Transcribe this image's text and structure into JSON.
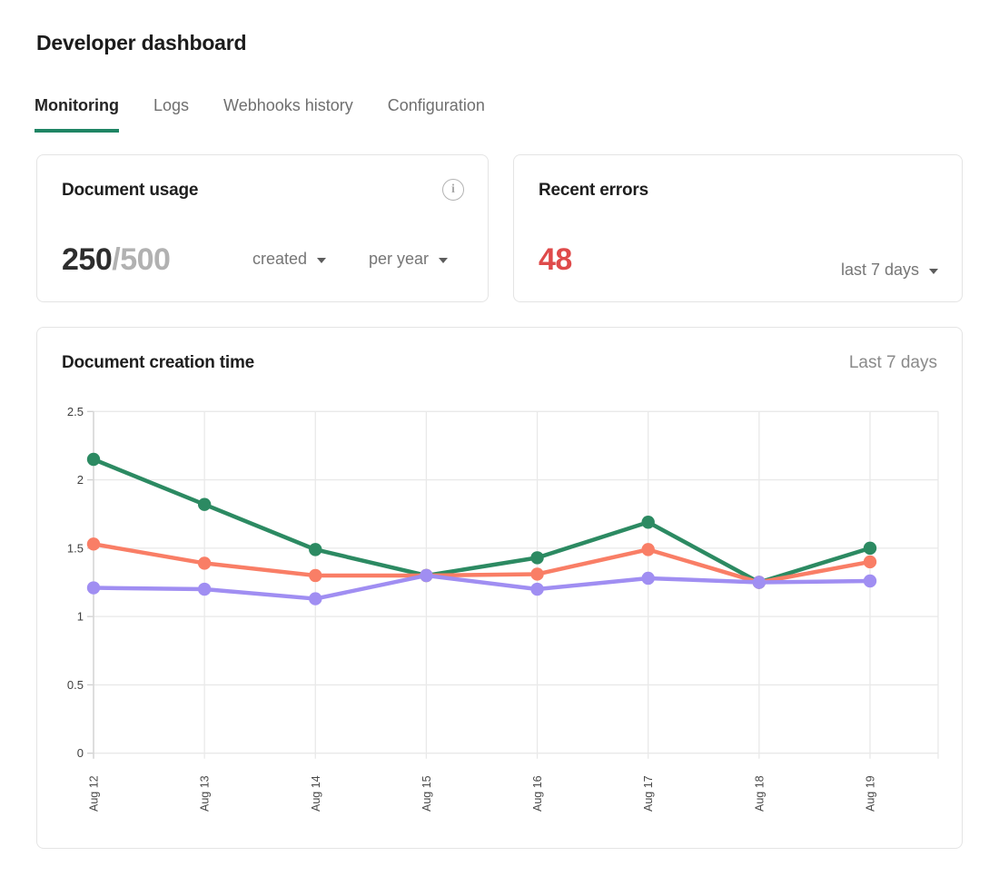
{
  "page": {
    "title": "Developer dashboard"
  },
  "colors": {
    "accent_green": "#1f8564",
    "error_red": "#df4a4a",
    "muted_text": "#767676",
    "card_border": "#e4e4e4"
  },
  "tabs": [
    {
      "label": "Monitoring",
      "active": true
    },
    {
      "label": "Logs",
      "active": false
    },
    {
      "label": "Webhooks history",
      "active": false
    },
    {
      "label": "Configuration",
      "active": false
    }
  ],
  "usage_card": {
    "title": "Document usage",
    "info_icon": "info-icon",
    "info_glyph": "i",
    "used": "250",
    "separator": "/",
    "limit": "500",
    "dropdown_created": "created",
    "dropdown_period": "per year"
  },
  "errors_card": {
    "title": "Recent errors",
    "count": "48",
    "dropdown_range": "last 7 days"
  },
  "chart_card": {
    "title": "Document creation time",
    "range_label": "Last 7 days"
  },
  "chart_data": {
    "type": "line",
    "title": "Document creation time",
    "xlabel": "",
    "ylabel": "",
    "ylim": [
      0,
      2.5
    ],
    "yticks": [
      0,
      0.5,
      1,
      1.5,
      2,
      2.5
    ],
    "ytick_labels": [
      "0",
      "0.5",
      "1",
      "1.5",
      "2",
      "2.5"
    ],
    "grid": true,
    "legend": "none",
    "categories": [
      "Aug 12",
      "Aug 13",
      "Aug 14",
      "Aug 15",
      "Aug 16",
      "Aug 17",
      "Aug 18",
      "Aug 19"
    ],
    "series": [
      {
        "name": "series-green",
        "color": "#2c8a62",
        "values": [
          2.15,
          1.82,
          1.49,
          1.3,
          1.43,
          1.69,
          1.25,
          1.5
        ]
      },
      {
        "name": "series-coral",
        "color": "#f97e66",
        "values": [
          1.53,
          1.39,
          1.3,
          1.3,
          1.31,
          1.49,
          1.25,
          1.4
        ]
      },
      {
        "name": "series-purple",
        "color": "#a08ef2",
        "values": [
          1.21,
          1.2,
          1.13,
          1.3,
          1.2,
          1.28,
          1.25,
          1.26
        ]
      }
    ]
  }
}
